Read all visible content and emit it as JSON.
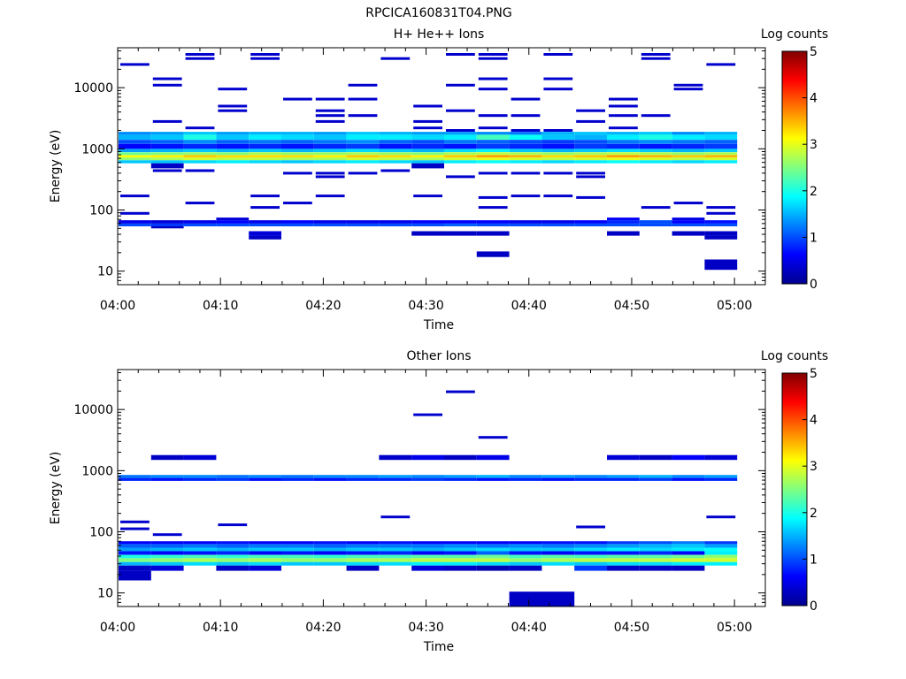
{
  "figure": {
    "title": "RPCICA160831T04.PNG"
  },
  "colormap_stops": [
    "#00008f",
    "#0000ff",
    "#0080ff",
    "#00ffff",
    "#80ff80",
    "#ffff00",
    "#ff8000",
    "#ff0000",
    "#800000"
  ],
  "chart_data": [
    {
      "type": "heatmap",
      "title": "H+ He++ Ions",
      "xlabel": "Time",
      "ylabel": "Energy (eV)",
      "y_scale": "log",
      "x_range": [
        "04:00",
        "05:03"
      ],
      "y_range": [
        6,
        45000
      ],
      "x_ticks": [
        "04:00",
        "04:10",
        "04:20",
        "04:30",
        "04:40",
        "04:50",
        "05:00"
      ],
      "y_ticks": [
        "10",
        "100",
        "1000",
        "10000"
      ],
      "colorbar": {
        "label": "Log counts",
        "range": [
          0,
          5
        ],
        "ticks": [
          "0",
          "1",
          "2",
          "3",
          "4",
          "5"
        ]
      },
      "bands": [
        {
          "emin": 1700,
          "emax": 1900,
          "values": [
            1.3,
            1.4,
            1.6,
            1.4,
            1.5,
            1.5,
            1.4,
            1.6,
            1.5,
            1.4,
            1.4,
            1.3,
            1.2,
            1.5,
            1.6,
            1.5,
            1.6,
            1.3,
            1.5
          ]
        },
        {
          "emin": 1400,
          "emax": 1700,
          "values": [
            1.5,
            1.6,
            2.0,
            1.6,
            1.8,
            1.7,
            1.6,
            1.8,
            1.8,
            1.7,
            1.8,
            2.2,
            1.9,
            1.6,
            1.5,
            1.8,
            2.0,
            1.8,
            1.7
          ]
        },
        {
          "emin": 1200,
          "emax": 1400,
          "values": [
            1.0,
            1.1,
            1.3,
            1.1,
            1.2,
            1.1,
            1.2,
            1.3,
            1.1,
            1.0,
            1.2,
            1.1,
            1.0,
            0.9,
            1.0,
            1.2,
            1.3,
            1.2,
            1.1
          ]
        },
        {
          "emin": 1000,
          "emax": 1200,
          "values": [
            0.6,
            0.7,
            0.8,
            0.7,
            0.8,
            0.7,
            0.8,
            0.9,
            0.7,
            0.8,
            0.7,
            0.9,
            0.8,
            0.7,
            0.9,
            0.8,
            0.7,
            0.8,
            0.9
          ]
        },
        {
          "emin": 880,
          "emax": 1000,
          "values": [
            1.4,
            1.5,
            1.6,
            1.5,
            1.6,
            1.5,
            1.6,
            1.7,
            1.6,
            1.5,
            1.7,
            1.8,
            1.6,
            1.5,
            1.6,
            1.7,
            1.6,
            1.5,
            1.6
          ]
        },
        {
          "emin": 790,
          "emax": 880,
          "values": [
            2.4,
            2.5,
            2.6,
            2.5,
            2.7,
            2.6,
            2.6,
            2.7,
            2.6,
            2.5,
            2.7,
            2.8,
            2.7,
            2.6,
            2.7,
            2.8,
            2.7,
            2.6,
            2.7
          ]
        },
        {
          "emin": 720,
          "emax": 790,
          "values": [
            3.1,
            3.2,
            3.4,
            3.3,
            3.3,
            3.3,
            3.2,
            3.4,
            3.3,
            3.2,
            3.4,
            3.6,
            3.5,
            3.3,
            3.4,
            3.6,
            3.5,
            3.4,
            3.5
          ]
        },
        {
          "emin": 650,
          "emax": 720,
          "values": [
            2.6,
            2.7,
            2.9,
            2.8,
            2.8,
            2.7,
            2.7,
            2.9,
            2.8,
            2.7,
            2.9,
            3.0,
            2.9,
            2.8,
            2.9,
            3.0,
            2.9,
            2.8,
            2.9
          ]
        },
        {
          "emin": 580,
          "emax": 650,
          "values": [
            1.6,
            1.6,
            1.7,
            1.8,
            1.7,
            1.6,
            1.7,
            1.8,
            1.7,
            1.6,
            1.8,
            1.9,
            1.8,
            1.7,
            1.8,
            1.9,
            1.8,
            1.7,
            1.8
          ]
        },
        {
          "emin": 480,
          "emax": 580,
          "values": [
            null,
            0.3,
            null,
            null,
            null,
            null,
            null,
            null,
            null,
            0.3,
            null,
            null,
            null,
            null,
            null,
            null,
            null,
            null,
            null
          ]
        },
        {
          "emin": 68,
          "emax": 75,
          "values": [
            null,
            null,
            null,
            0.4,
            null,
            null,
            null,
            null,
            null,
            null,
            null,
            null,
            null,
            null,
            null,
            0.6,
            null,
            0.5,
            null
          ]
        },
        {
          "emin": 60,
          "emax": 68,
          "values": [
            0.5,
            0.4,
            0.5,
            0.6,
            0.5,
            0.6,
            0.5,
            0.5,
            0.5,
            0.6,
            0.6,
            0.6,
            0.5,
            0.5,
            0.6,
            0.8,
            1.0,
            0.6,
            0.7
          ]
        },
        {
          "emin": 54,
          "emax": 60,
          "values": [
            1.0,
            0.9,
            1.0,
            1.0,
            1.0,
            1.0,
            1.0,
            1.0,
            1.0,
            1.0,
            1.1,
            1.0,
            1.0,
            1.0,
            1.0,
            1.0,
            1.0,
            1.0,
            1.0
          ]
        },
        {
          "emin": 50,
          "emax": 54,
          "values": [
            null,
            0.3,
            null,
            null,
            null,
            null,
            null,
            null,
            null,
            null,
            null,
            null,
            null,
            null,
            null,
            null,
            null,
            null,
            null
          ]
        },
        {
          "emin": 38,
          "emax": 45,
          "values": [
            null,
            null,
            null,
            null,
            0.4,
            null,
            null,
            null,
            null,
            0.3,
            0.3,
            0.3,
            null,
            null,
            null,
            0.3,
            null,
            0.3,
            0.3
          ]
        },
        {
          "emin": 33,
          "emax": 38,
          "values": [
            null,
            null,
            null,
            null,
            0.3,
            null,
            null,
            null,
            null,
            null,
            null,
            null,
            null,
            null,
            null,
            null,
            null,
            null,
            0.3
          ]
        },
        {
          "emin": 17,
          "emax": 21,
          "values": [
            null,
            null,
            null,
            null,
            null,
            null,
            null,
            null,
            null,
            null,
            null,
            0.3,
            null,
            null,
            null,
            null,
            null,
            null,
            null
          ]
        },
        {
          "emin": 10.5,
          "emax": 15.5,
          "values": [
            null,
            null,
            null,
            null,
            null,
            null,
            null,
            null,
            null,
            null,
            null,
            null,
            null,
            null,
            null,
            null,
            null,
            null,
            0.3
          ]
        }
      ],
      "lines": [
        {
          "e": 24000,
          "cols": [
            0,
            18
          ]
        },
        {
          "e": 35000,
          "cols": [
            2,
            4,
            10,
            11,
            13,
            16
          ]
        },
        {
          "e": 30000,
          "cols": [
            2,
            4,
            8,
            11,
            16
          ]
        },
        {
          "e": 14000,
          "cols": [
            1,
            11,
            13
          ]
        },
        {
          "e": 9500,
          "cols": [
            3,
            11,
            13,
            17
          ]
        },
        {
          "e": 11000,
          "cols": [
            1,
            7,
            10,
            17
          ]
        },
        {
          "e": 6500,
          "cols": [
            5,
            6,
            7,
            12,
            15
          ]
        },
        {
          "e": 5000,
          "cols": [
            3,
            9,
            15
          ]
        },
        {
          "e": 4200,
          "cols": [
            3,
            6,
            10,
            14
          ]
        },
        {
          "e": 3500,
          "cols": [
            6,
            7,
            11,
            12,
            15,
            16
          ]
        },
        {
          "e": 2800,
          "cols": [
            1,
            6,
            9,
            14
          ]
        },
        {
          "e": 2200,
          "cols": [
            2,
            9,
            11,
            15
          ]
        },
        {
          "e": 2000,
          "cols": [
            10,
            12,
            13
          ]
        },
        {
          "e": 440,
          "cols": [
            1,
            2,
            8
          ]
        },
        {
          "e": 400,
          "cols": [
            5,
            6,
            7,
            11,
            12,
            13,
            14
          ]
        },
        {
          "e": 350,
          "cols": [
            6,
            10,
            14
          ]
        },
        {
          "e": 170,
          "cols": [
            0,
            4,
            6,
            9,
            12,
            13
          ]
        },
        {
          "e": 130,
          "cols": [
            2,
            5,
            17
          ]
        },
        {
          "e": 110,
          "cols": [
            4,
            11,
            16,
            18
          ]
        },
        {
          "e": 88,
          "cols": [
            0,
            18
          ]
        },
        {
          "e": 160,
          "cols": [
            11,
            14
          ]
        }
      ]
    },
    {
      "type": "heatmap",
      "title": "Other Ions",
      "xlabel": "Time",
      "ylabel": "Energy (eV)",
      "y_scale": "log",
      "x_range": [
        "04:00",
        "05:03"
      ],
      "y_range": [
        6,
        45000
      ],
      "x_ticks": [
        "04:00",
        "04:10",
        "04:20",
        "04:30",
        "04:40",
        "04:50",
        "05:00"
      ],
      "y_ticks": [
        "10",
        "100",
        "1000",
        "10000"
      ],
      "colorbar": {
        "label": "Log counts",
        "range": [
          0,
          5
        ],
        "ticks": [
          "0",
          "1",
          "2",
          "3",
          "4",
          "5"
        ]
      },
      "bands": [
        {
          "emin": 1500,
          "emax": 1800,
          "values": [
            null,
            0.3,
            0.4,
            null,
            null,
            null,
            null,
            null,
            0.3,
            0.5,
            0.3,
            0.5,
            null,
            null,
            null,
            0.4,
            0.3,
            0.6,
            0.4
          ]
        },
        {
          "emin": 760,
          "emax": 850,
          "values": [
            1.2,
            1.3,
            1.3,
            1.2,
            1.3,
            1.2,
            1.3,
            1.3,
            1.4,
            1.3,
            1.4,
            1.5,
            1.3,
            1.4,
            1.3,
            1.4,
            1.5,
            1.3,
            1.4
          ]
        },
        {
          "emin": 680,
          "emax": 760,
          "values": [
            0.8,
            0.7,
            0.8,
            0.9,
            0.7,
            0.8,
            0.7,
            0.8,
            0.8,
            0.9,
            0.8,
            0.7,
            0.8,
            0.7,
            0.8,
            0.8,
            0.9,
            0.7,
            0.8
          ]
        },
        {
          "emin": 63,
          "emax": 70,
          "values": [
            0.6,
            0.6,
            0.6,
            0.7,
            0.6,
            0.6,
            0.7,
            0.6,
            0.7,
            0.6,
            0.6,
            0.6,
            0.6,
            0.7,
            0.7,
            0.9,
            1.0,
            1.2,
            0.9
          ]
        },
        {
          "emin": 55,
          "emax": 63,
          "values": [
            1.1,
            1.1,
            1.2,
            1.1,
            1.2,
            1.2,
            1.1,
            1.2,
            1.2,
            1.2,
            1.3,
            1.2,
            1.3,
            1.2,
            1.3,
            1.4,
            1.5,
            1.6,
            1.4
          ]
        },
        {
          "emin": 48,
          "emax": 55,
          "values": [
            1.4,
            1.5,
            1.6,
            1.5,
            1.6,
            1.6,
            1.5,
            1.6,
            1.6,
            1.5,
            1.6,
            1.7,
            1.6,
            1.6,
            1.7,
            1.8,
            1.7,
            1.8,
            1.9
          ]
        },
        {
          "emin": 42,
          "emax": 48,
          "values": [
            0.7,
            0.6,
            0.7,
            0.8,
            0.6,
            0.7,
            0.6,
            0.7,
            0.8,
            0.6,
            0.7,
            1.1,
            0.7,
            0.6,
            0.7,
            0.7,
            0.8,
            0.6,
            1.8
          ]
        },
        {
          "emin": 37,
          "emax": 42,
          "values": [
            2.0,
            2.1,
            2.2,
            2.1,
            2.2,
            2.2,
            2.1,
            2.2,
            2.2,
            2.3,
            2.3,
            2.4,
            2.2,
            2.3,
            2.2,
            2.3,
            2.3,
            2.4,
            2.6
          ]
        },
        {
          "emin": 32,
          "emax": 37,
          "values": [
            2.5,
            2.6,
            2.7,
            2.6,
            2.7,
            2.6,
            2.6,
            2.7,
            2.7,
            2.8,
            2.8,
            2.8,
            2.6,
            2.7,
            2.8,
            2.8,
            2.8,
            2.9,
            2.9
          ]
        },
        {
          "emin": 28,
          "emax": 32,
          "values": [
            1.5,
            1.6,
            1.7,
            1.6,
            1.7,
            1.6,
            1.6,
            1.7,
            1.7,
            1.8,
            1.8,
            1.7,
            1.6,
            1.7,
            1.6,
            1.7,
            1.7,
            1.8,
            1.8
          ]
        },
        {
          "emin": 23,
          "emax": 28,
          "values": [
            0.3,
            0.4,
            null,
            0.3,
            0.4,
            null,
            null,
            0.3,
            null,
            0.4,
            0.3,
            0.2,
            0.3,
            null,
            0.9,
            0.3,
            0.3,
            0.3,
            null
          ]
        },
        {
          "emin": 16,
          "emax": 23,
          "values": [
            0.3,
            null,
            null,
            null,
            null,
            null,
            null,
            null,
            null,
            null,
            null,
            null,
            null,
            null,
            null,
            null,
            null,
            null,
            null
          ]
        }
      ],
      "lines": [
        {
          "e": 145,
          "cols": [
            0
          ]
        },
        {
          "e": 112,
          "cols": [
            0
          ]
        },
        {
          "e": 90,
          "cols": [
            1
          ]
        },
        {
          "e": 130,
          "cols": [
            3
          ]
        },
        {
          "e": 175,
          "cols": [
            8,
            18
          ]
        },
        {
          "e": 120,
          "cols": [
            14
          ]
        },
        {
          "e": 8200,
          "cols": [
            9
          ]
        },
        {
          "e": 19500,
          "cols": [
            10
          ]
        },
        {
          "e": 3500,
          "cols": [
            11
          ]
        },
        {
          "e": 1650,
          "cols": [
            8
          ]
        }
      ],
      "blocks": [
        {
          "emin": 6,
          "emax": 10.5,
          "col_start": 12,
          "col_end": 13,
          "value": 0.3
        }
      ]
    }
  ]
}
